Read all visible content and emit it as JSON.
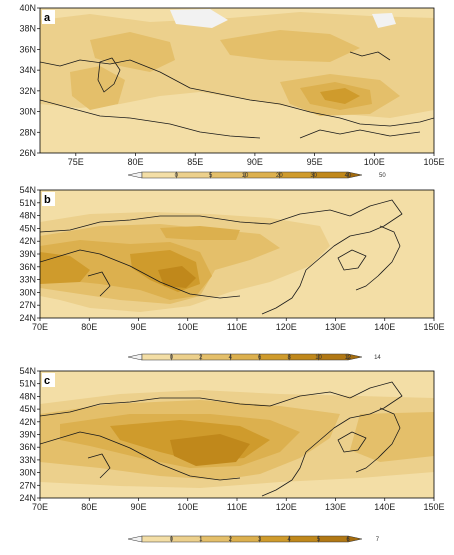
{
  "palette": [
    "#f3dea6",
    "#ecd08c",
    "#e4bf6a",
    "#dcb04e",
    "#cf9b2c",
    "#c0881b",
    "#b17814",
    "#a46c0e"
  ],
  "panels": [
    {
      "label": "a",
      "lat_ticks": [
        "40N",
        "38N",
        "36N",
        "34N",
        "32N",
        "30N",
        "28N",
        "26N"
      ],
      "lon_ticks": [
        "75E",
        "80E",
        "85E",
        "90E",
        "95E",
        "100E",
        "105E"
      ],
      "colorbar_ticks": [
        "0",
        "5",
        "10",
        "20",
        "30",
        "40",
        "50"
      ]
    },
    {
      "label": "b",
      "lat_ticks": [
        "54N",
        "51N",
        "48N",
        "45N",
        "42N",
        "39N",
        "36N",
        "33N",
        "30N",
        "27N",
        "24N"
      ],
      "lon_ticks": [
        "70E",
        "80E",
        "90E",
        "100E",
        "110E",
        "120E",
        "130E",
        "140E",
        "150E"
      ],
      "colorbar_ticks": [
        "0",
        "2",
        "4",
        "6",
        "8",
        "10",
        "12",
        "14"
      ]
    },
    {
      "label": "c",
      "lat_ticks": [
        "54N",
        "51N",
        "48N",
        "45N",
        "42N",
        "39N",
        "36N",
        "33N",
        "30N",
        "27N",
        "24N"
      ],
      "lon_ticks": [
        "70E",
        "80E",
        "90E",
        "100E",
        "110E",
        "120E",
        "130E",
        "140E",
        "150E"
      ],
      "colorbar_ticks": [
        "0",
        "1",
        "2",
        "3",
        "4",
        "5",
        "6",
        "7"
      ]
    }
  ]
}
